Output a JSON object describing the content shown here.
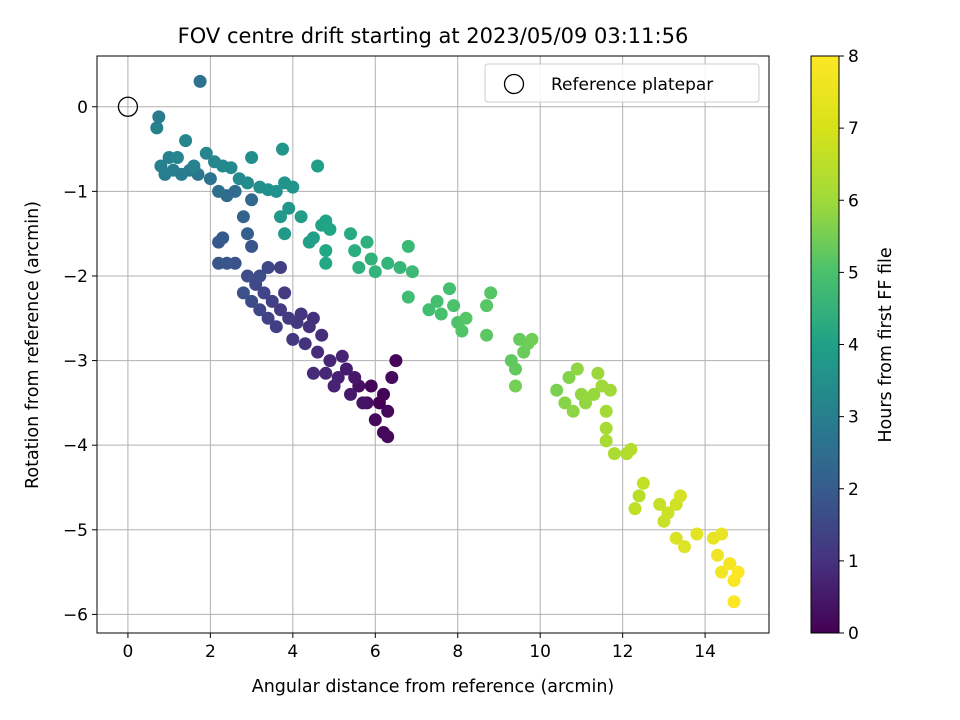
{
  "chart_data": {
    "type": "scatter",
    "title": "FOV centre drift starting at 2023/05/09 03:11:56",
    "xlabel": "Angular distance from reference (arcmin)",
    "ylabel": "Rotation from reference (arcmin)",
    "xlim": [
      -0.75,
      15.55
    ],
    "ylim": [
      -6.22,
      0.6
    ],
    "x_ticks": [
      0,
      2,
      4,
      6,
      8,
      10,
      12,
      14
    ],
    "y_ticks": [
      0,
      -1,
      -2,
      -3,
      -4,
      -5,
      -6
    ],
    "x_tick_labels": [
      "0",
      "2",
      "4",
      "6",
      "8",
      "10",
      "12",
      "14"
    ],
    "y_tick_labels": [
      "0",
      "−1",
      "−2",
      "−3",
      "−4",
      "−5",
      "−6"
    ],
    "grid": true,
    "legend": {
      "position": "top-right",
      "entries": [
        "Reference platepar"
      ]
    },
    "colorbar": {
      "label": "Hours from first FF file",
      "range": [
        0,
        8
      ],
      "ticks": [
        0,
        1,
        2,
        3,
        4,
        5,
        6,
        7,
        8
      ],
      "tick_labels": [
        "0",
        "1",
        "2",
        "3",
        "4",
        "5",
        "6",
        "7",
        "8"
      ],
      "colormap": "viridis"
    },
    "reference_point": {
      "name": "Reference platepar",
      "x": 0,
      "y": 0
    },
    "points": [
      [
        6.1,
        -3.5,
        0.0
      ],
      [
        6.2,
        -3.4,
        0.05
      ],
      [
        5.9,
        -3.3,
        0.1
      ],
      [
        6.3,
        -3.6,
        0.15
      ],
      [
        6.0,
        -3.7,
        0.2
      ],
      [
        6.2,
        -3.85,
        0.1
      ],
      [
        6.5,
        -3.0,
        0.1
      ],
      [
        6.4,
        -3.2,
        0.2
      ],
      [
        5.8,
        -3.5,
        0.3
      ],
      [
        6.3,
        -3.9,
        0.2
      ],
      [
        5.6,
        -3.3,
        0.35
      ],
      [
        5.7,
        -3.5,
        0.4
      ],
      [
        5.5,
        -3.2,
        0.5
      ],
      [
        5.3,
        -3.1,
        0.6
      ],
      [
        5.4,
        -3.4,
        0.55
      ],
      [
        5.1,
        -3.2,
        0.7
      ],
      [
        5.2,
        -2.95,
        0.8
      ],
      [
        4.9,
        -3.0,
        0.85
      ],
      [
        5.0,
        -3.3,
        0.75
      ],
      [
        4.8,
        -3.15,
        0.9
      ],
      [
        4.6,
        -2.9,
        1.0
      ],
      [
        4.5,
        -3.15,
        0.95
      ],
      [
        4.7,
        -2.7,
        1.05
      ],
      [
        4.4,
        -2.6,
        1.1
      ],
      [
        4.3,
        -2.8,
        1.15
      ],
      [
        4.2,
        -2.45,
        1.2
      ],
      [
        4.1,
        -2.55,
        1.25
      ],
      [
        4.0,
        -2.75,
        1.3
      ],
      [
        3.9,
        -2.5,
        1.35
      ],
      [
        4.5,
        -2.5,
        1.1
      ],
      [
        3.7,
        -2.4,
        1.4
      ],
      [
        3.5,
        -2.3,
        1.5
      ],
      [
        3.4,
        -2.5,
        1.55
      ],
      [
        3.3,
        -2.2,
        1.6
      ],
      [
        3.2,
        -2.4,
        1.7
      ],
      [
        3.1,
        -2.1,
        1.75
      ],
      [
        3.0,
        -2.3,
        1.8
      ],
      [
        2.9,
        -2.0,
        1.9
      ],
      [
        3.6,
        -2.6,
        1.45
      ],
      [
        3.8,
        -2.2,
        1.35
      ],
      [
        2.8,
        -2.2,
        1.95
      ],
      [
        3.2,
        -2.0,
        1.85
      ],
      [
        3.4,
        -1.9,
        1.7
      ],
      [
        3.7,
        -1.9,
        1.5
      ],
      [
        2.6,
        -1.85,
        2.0
      ],
      [
        2.4,
        -1.85,
        2.1
      ],
      [
        2.2,
        -1.85,
        2.15
      ],
      [
        2.2,
        -1.6,
        2.2
      ],
      [
        2.3,
        -1.55,
        2.25
      ],
      [
        3.0,
        -1.65,
        2.1
      ],
      [
        2.9,
        -1.5,
        2.4
      ],
      [
        2.8,
        -1.3,
        2.55
      ],
      [
        3.0,
        -1.1,
        2.7
      ],
      [
        2.6,
        -1.0,
        2.8
      ],
      [
        2.4,
        -1.05,
        2.75
      ],
      [
        2.2,
        -1.0,
        2.9
      ],
      [
        2.0,
        -0.85,
        3.0
      ],
      [
        1.7,
        -0.8,
        3.1
      ],
      [
        1.5,
        -0.75,
        3.2
      ],
      [
        1.3,
        -0.8,
        3.3
      ],
      [
        1.1,
        -0.75,
        3.35
      ],
      [
        0.9,
        -0.8,
        3.4
      ],
      [
        0.8,
        -0.7,
        3.45
      ],
      [
        0.7,
        -0.25,
        3.5
      ],
      [
        0.75,
        -0.12,
        3.3
      ],
      [
        1.75,
        0.3,
        3.0
      ],
      [
        1.0,
        -0.6,
        3.5
      ],
      [
        1.2,
        -0.6,
        3.6
      ],
      [
        1.4,
        -0.4,
        3.6
      ],
      [
        1.6,
        -0.7,
        3.55
      ],
      [
        1.9,
        -0.55,
        3.6
      ],
      [
        2.1,
        -0.65,
        3.65
      ],
      [
        2.3,
        -0.7,
        3.7
      ],
      [
        2.5,
        -0.72,
        3.75
      ],
      [
        2.7,
        -0.85,
        3.8
      ],
      [
        2.9,
        -0.9,
        3.85
      ],
      [
        3.0,
        -0.6,
        3.9
      ],
      [
        3.2,
        -0.95,
        3.95
      ],
      [
        3.4,
        -0.98,
        4.0
      ],
      [
        3.6,
        -1.0,
        4.05
      ],
      [
        3.75,
        -0.5,
        4.1
      ],
      [
        3.8,
        -0.9,
        4.1
      ],
      [
        4.0,
        -0.95,
        4.15
      ],
      [
        3.9,
        -1.2,
        4.2
      ],
      [
        3.7,
        -1.3,
        4.25
      ],
      [
        3.8,
        -1.5,
        4.3
      ],
      [
        4.2,
        -1.3,
        4.4
      ],
      [
        4.5,
        -1.55,
        4.5
      ],
      [
        4.6,
        -0.7,
        4.4
      ],
      [
        4.4,
        -1.6,
        4.5
      ],
      [
        4.7,
        -1.4,
        4.55
      ],
      [
        4.8,
        -1.35,
        4.6
      ],
      [
        4.9,
        -1.45,
        4.7
      ],
      [
        4.8,
        -1.7,
        4.75
      ],
      [
        4.8,
        -1.85,
        4.8
      ],
      [
        5.4,
        -1.5,
        4.9
      ],
      [
        5.5,
        -1.7,
        5.0
      ],
      [
        5.6,
        -1.9,
        5.05
      ],
      [
        5.8,
        -1.6,
        5.1
      ],
      [
        5.9,
        -1.8,
        5.15
      ],
      [
        6.0,
        -1.95,
        5.2
      ],
      [
        6.3,
        -1.85,
        5.25
      ],
      [
        6.6,
        -1.9,
        5.3
      ],
      [
        6.8,
        -1.65,
        5.35
      ],
      [
        6.9,
        -1.95,
        5.4
      ],
      [
        6.8,
        -2.25,
        5.5
      ],
      [
        7.3,
        -2.4,
        5.55
      ],
      [
        7.5,
        -2.3,
        5.6
      ],
      [
        7.6,
        -2.45,
        5.65
      ],
      [
        7.8,
        -2.15,
        5.6
      ],
      [
        7.9,
        -2.35,
        5.7
      ],
      [
        8.0,
        -2.55,
        5.75
      ],
      [
        8.1,
        -2.65,
        5.8
      ],
      [
        8.2,
        -2.5,
        5.85
      ],
      [
        8.7,
        -2.35,
        5.9
      ],
      [
        8.8,
        -2.2,
        5.85
      ],
      [
        8.7,
        -2.7,
        5.95
      ],
      [
        9.3,
        -3.0,
        6.0
      ],
      [
        9.4,
        -3.1,
        6.05
      ],
      [
        9.5,
        -2.75,
        6.1
      ],
      [
        9.6,
        -2.9,
        6.15
      ],
      [
        9.7,
        -2.8,
        6.2
      ],
      [
        9.8,
        -2.75,
        6.25
      ],
      [
        9.4,
        -3.3,
        6.3
      ],
      [
        10.4,
        -3.35,
        6.4
      ],
      [
        10.7,
        -3.2,
        6.5
      ],
      [
        10.6,
        -3.5,
        6.55
      ],
      [
        10.8,
        -3.6,
        6.6
      ],
      [
        10.9,
        -3.1,
        6.65
      ],
      [
        11.0,
        -3.4,
        6.7
      ],
      [
        11.1,
        -3.5,
        6.7
      ],
      [
        11.3,
        -3.4,
        6.75
      ],
      [
        11.4,
        -3.15,
        6.8
      ],
      [
        11.5,
        -3.3,
        6.85
      ],
      [
        11.7,
        -3.35,
        6.85
      ],
      [
        11.6,
        -3.6,
        6.9
      ],
      [
        11.6,
        -3.8,
        6.95
      ],
      [
        11.6,
        -3.95,
        6.95
      ],
      [
        11.8,
        -4.1,
        7.0
      ],
      [
        12.1,
        -4.1,
        7.05
      ],
      [
        12.2,
        -4.05,
        7.1
      ],
      [
        12.4,
        -4.6,
        7.15
      ],
      [
        12.3,
        -4.75,
        7.2
      ],
      [
        12.5,
        -4.45,
        7.25
      ],
      [
        12.9,
        -4.7,
        7.3
      ],
      [
        13.0,
        -4.9,
        7.35
      ],
      [
        13.1,
        -4.8,
        7.4
      ],
      [
        13.3,
        -4.7,
        7.45
      ],
      [
        13.4,
        -4.6,
        7.5
      ],
      [
        13.3,
        -5.1,
        7.55
      ],
      [
        13.5,
        -5.2,
        7.6
      ],
      [
        13.8,
        -5.05,
        7.65
      ],
      [
        14.2,
        -5.1,
        7.7
      ],
      [
        14.4,
        -5.05,
        7.75
      ],
      [
        14.3,
        -5.3,
        7.8
      ],
      [
        14.4,
        -5.5,
        7.85
      ],
      [
        14.6,
        -5.4,
        7.9
      ],
      [
        14.7,
        -5.6,
        7.95
      ],
      [
        14.7,
        -5.85,
        8.0
      ],
      [
        14.8,
        -5.5,
        8.0
      ]
    ]
  }
}
